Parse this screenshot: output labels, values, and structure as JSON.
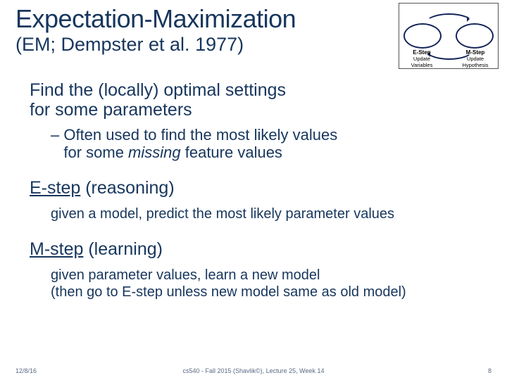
{
  "title": {
    "main": "Expectation-Maximization",
    "sub": "(EM; Dempster et al. 1977)"
  },
  "diagram": {
    "left_head": "E-Step",
    "left_sub1": "Update",
    "left_sub2": "Variables",
    "right_head": "M-Step",
    "right_sub1": "Update",
    "right_sub2": "Hypothesis",
    "border_color": "#14255a",
    "bg": "#ffffff"
  },
  "body": {
    "lead_l1": "Find the (locally) optimal settings",
    "lead_l2": "for some parameters",
    "sub_dash": "– Often used to find the most likely values",
    "sub_l2a": "for some ",
    "sub_l2_em": "missing",
    "sub_l2b": " feature values",
    "e_head_u": "E-step",
    "e_head_rest": " (reasoning)",
    "e_body": "given a model, predict the most likely parameter values",
    "m_head_u": "M-step",
    "m_head_rest": " (learning)",
    "m_body_l1": "given parameter values, learn a new model",
    "m_body_l2": "(then go to E-step unless new model same as old model)"
  },
  "footer": {
    "date": "12/8/16",
    "center": "cs540 - Fall 2015 (Shavlik©), Lecture 25, Week 14",
    "page": "8"
  },
  "colors": {
    "heading": "#17365d",
    "body": "#17365d",
    "bg": "#ffffff"
  }
}
